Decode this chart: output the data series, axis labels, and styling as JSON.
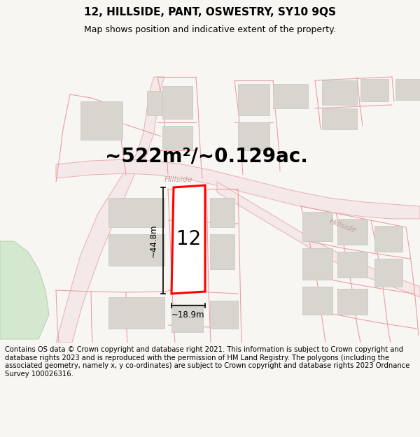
{
  "title": "12, HILLSIDE, PANT, OSWESTRY, SY10 9QS",
  "subtitle": "Map shows position and indicative extent of the property.",
  "area_text": "~522m²/~0.129ac.",
  "label_number": "12",
  "dim_width": "~18.9m",
  "dim_height": "~44.8m",
  "street_name_1": "Hillside",
  "street_name_2": "Hillside",
  "footer": "Contains OS data © Crown copyright and database right 2021. This information is subject to Crown copyright and database rights 2023 and is reproduced with the permission of HM Land Registry. The polygons (including the associated geometry, namely x, y co-ordinates) are subject to Crown copyright and database rights 2023 Ordnance Survey 100026316.",
  "bg_color": "#f8f6f3",
  "map_bg": "#f8f6f3",
  "road_color": "#e8b8b8",
  "road_fill": "#f5e8e8",
  "plot_line_color": "#e8a0a0",
  "plot_color": "#ff0000",
  "plot_fill": "#ffffff",
  "building_color": "#d8d4ce",
  "building_edge": "#c8c4be",
  "green_color": "#d4e8d0",
  "green_edge": "#b8d4b4",
  "title_fontsize": 11,
  "subtitle_fontsize": 9,
  "area_fontsize": 20,
  "footer_fontsize": 7.2,
  "header_bg": "#ffffff",
  "footer_bg": "#ffffff"
}
